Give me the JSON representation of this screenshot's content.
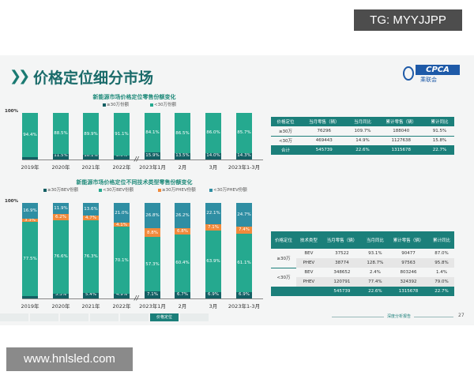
{
  "watermark_top": "TG: MYYJJPP",
  "watermark_bottom": "www.hnlsled.com",
  "slide": {
    "title": "价格定位细分市场",
    "logo_text": "CPCA",
    "logo_sub": "乘联会",
    "footer_text": "深度分析报告",
    "page_number": "27",
    "nav": [
      "",
      "",
      "",
      "",
      "",
      "价格定位",
      ""
    ],
    "nav_active": 5
  },
  "colors": {
    "accent": "#1b7f7a",
    "dark": "#135f63",
    "teal": "#25a98f",
    "orange": "#f08a3c",
    "blue": "#2f8ea3"
  },
  "chart_data": [
    {
      "type": "bar",
      "stacked": true,
      "title": "新能源市场价格定位零售份额变化",
      "ylabel": "",
      "ytick": "100%",
      "ylim": [
        0,
        100
      ],
      "categories": [
        "2019年",
        "2020年",
        "2021年",
        "2022年",
        "2023年1月",
        "2月",
        "3月",
        "2023年1-3月"
      ],
      "series": [
        {
          "name": "≥30万份额",
          "color": "#135f63",
          "values": [
            5.6,
            11.5,
            10.1,
            8.9,
            15.9,
            13.5,
            14.0,
            14.3
          ]
        },
        {
          "name": "<30万份额",
          "color": "#25a98f",
          "values": [
            94.4,
            88.5,
            89.9,
            91.1,
            84.1,
            86.5,
            86.0,
            85.7
          ]
        }
      ]
    },
    {
      "type": "bar",
      "stacked": true,
      "title": "新能源市场价格定位不同技术类型零售份额变化",
      "ylabel": "",
      "ytick": "100%",
      "ylim": [
        0,
        100
      ],
      "categories": [
        "2019年",
        "2020年",
        "2021年",
        "2022年",
        "2023年1月",
        "2月",
        "3月",
        "2023年1-3月"
      ],
      "series": [
        {
          "name": "≥30万BEV份额",
          "color": "#135f63",
          "values": [
            2.3,
            5.3,
            5.4,
            4.9,
            7.1,
            6.7,
            6.9,
            6.9
          ]
        },
        {
          "name": "<30万BEV份额",
          "color": "#25a98f",
          "values": [
            77.5,
            76.6,
            76.3,
            70.1,
            57.3,
            60.4,
            63.9,
            61.1
          ]
        },
        {
          "name": "≥30万PHEV份额",
          "color": "#f08a3c",
          "values": [
            3.3,
            6.2,
            4.7,
            4.1,
            8.8,
            6.8,
            7.1,
            7.4
          ]
        },
        {
          "name": "<30万PHEV份额",
          "color": "#2f8ea3",
          "values": [
            16.9,
            11.9,
            13.6,
            21.0,
            26.8,
            26.2,
            22.1,
            24.7
          ]
        }
      ]
    }
  ],
  "table1": {
    "headers": [
      "价格定位",
      "当月零售（辆）",
      "当月同比",
      "累计零售（辆）",
      "累计同比"
    ],
    "rows": [
      [
        "≥30万",
        "76296",
        "109.7%",
        "188040",
        "91.5%"
      ],
      [
        "<30万",
        "469443",
        "14.9%",
        "1127638",
        "15.8%"
      ],
      [
        "合计",
        "545739",
        "22.6%",
        "1315678",
        "22.7%"
      ]
    ]
  },
  "table2": {
    "headers": [
      "价格定位",
      "技术类型",
      "当月零售（辆）",
      "当月同比",
      "累计零售（辆）",
      "累计同比"
    ],
    "groups": [
      "≥30万",
      "<30万"
    ],
    "rows": [
      [
        "BEV",
        "37522",
        "93.1%",
        "90477",
        "87.0%"
      ],
      [
        "PHEV",
        "38774",
        "128.7%",
        "97563",
        "95.8%"
      ],
      [
        "BEV",
        "348652",
        "2.4%",
        "803246",
        "1.4%"
      ],
      [
        "PHEV",
        "120791",
        "77.4%",
        "324392",
        "79.0%"
      ]
    ],
    "total": [
      "545739",
      "22.6%",
      "1315678",
      "22.7%"
    ]
  }
}
